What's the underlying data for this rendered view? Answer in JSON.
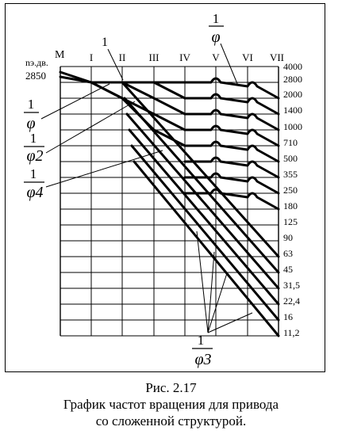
{
  "figure": {
    "number": "Рис. 2.17",
    "caption_line1": "График частот вращения для привода",
    "caption_line2": "со сложенной структурой."
  },
  "diagram": {
    "motor_label": "М",
    "n_label": "nэ.дв.",
    "motor_speed": "2850",
    "shaft_labels": [
      "I",
      "II",
      "III",
      "IV",
      "V",
      "VI",
      "VII"
    ],
    "speed_scale": [
      "4000",
      "2800",
      "2000",
      "1400",
      "1000",
      "710",
      "500",
      "355",
      "250",
      "180",
      "125",
      "90",
      "63",
      "45",
      "31,5",
      "22,4",
      "16",
      "11,2"
    ],
    "callout_1": "1",
    "ratio_labels": [
      {
        "numerator": "1",
        "denominator": "φ"
      },
      {
        "numerator": "1",
        "denominator": "φ2"
      },
      {
        "numerator": "1",
        "denominator": "φ4"
      },
      {
        "numerator": "1",
        "denominator": "φ"
      },
      {
        "numerator": "1",
        "denominator": "φ3"
      }
    ]
  }
}
